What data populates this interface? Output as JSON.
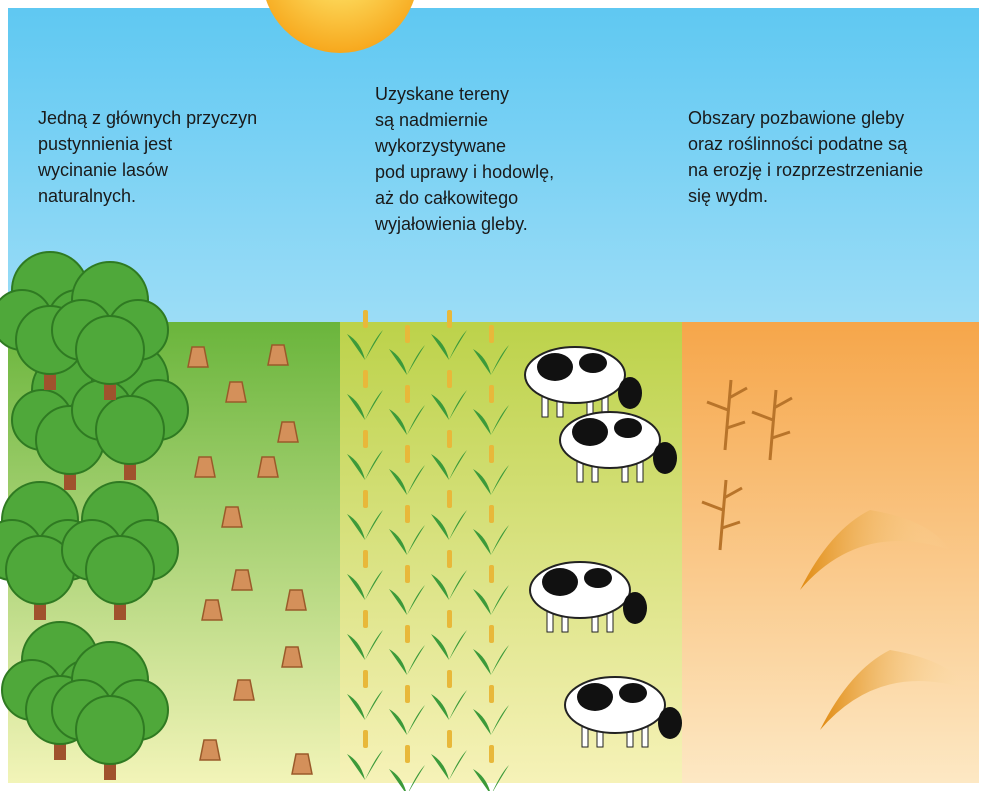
{
  "panels": [
    {
      "lines": [
        "Jedną z głównych przyczyn",
        "pustynnienia jest",
        "wycinanie lasów",
        "naturalnych."
      ]
    },
    {
      "lines": [
        "Uzyskane tereny",
        "są nadmiernie",
        "wykorzystywane",
        "pod uprawy i hodowlę,",
        "aż do całkowitego",
        "wyjałowienia gleby."
      ]
    },
    {
      "lines": [
        "Obszary pozbawione gleby",
        "oraz roślinności podatne są",
        "na erozję i rozprzestrzenianie",
        "się wydm."
      ]
    }
  ]
}
